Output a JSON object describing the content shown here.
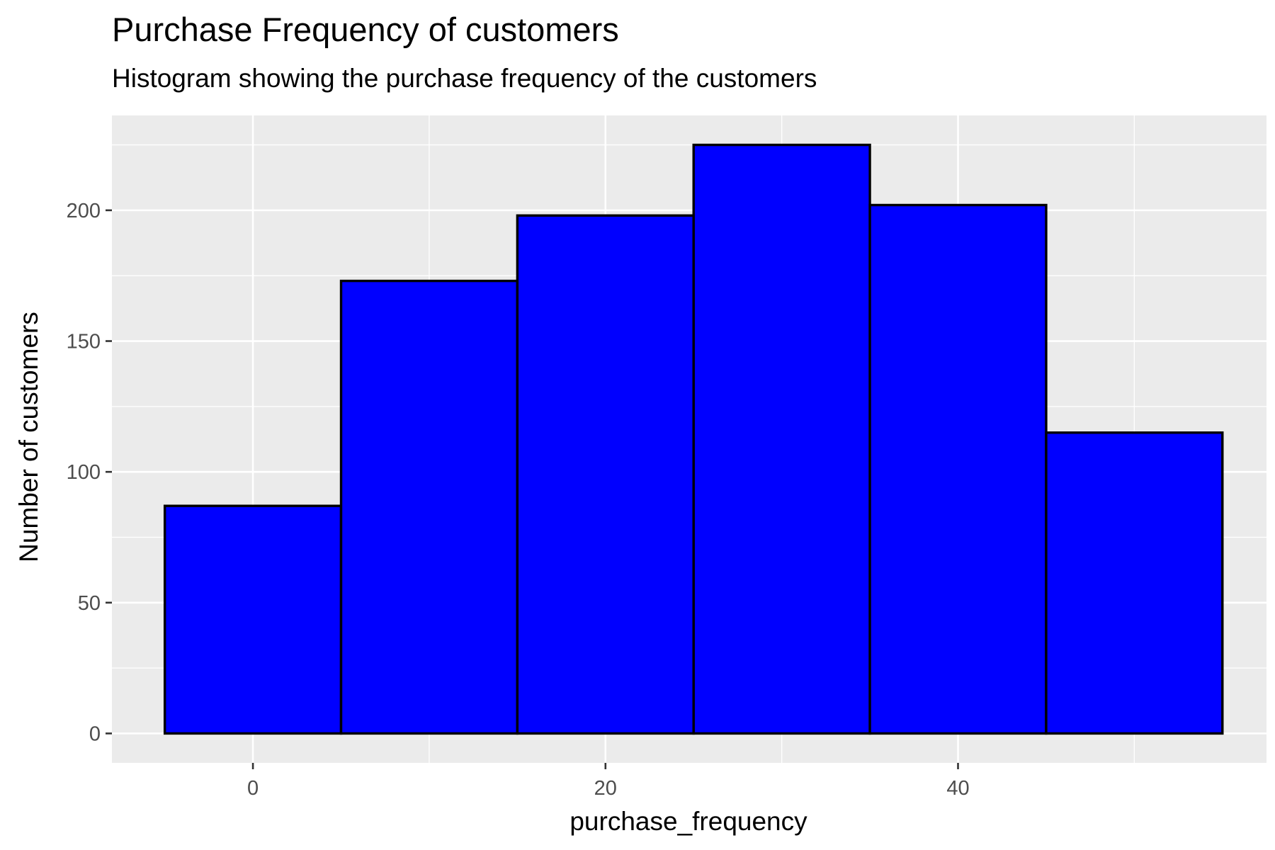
{
  "chart_data": {
    "type": "bar",
    "variant": "histogram",
    "title": "Purchase Frequency of customers",
    "subtitle": "Histogram showing the purchase frequency of the customers",
    "xlabel": "purchase_frequency",
    "ylabel": "Number of customers",
    "bins": [
      {
        "x_start": -5,
        "x_end": 5,
        "count": 87
      },
      {
        "x_start": 5,
        "x_end": 15,
        "count": 173
      },
      {
        "x_start": 15,
        "x_end": 25,
        "count": 198
      },
      {
        "x_start": 25,
        "x_end": 35,
        "count": 225
      },
      {
        "x_start": 35,
        "x_end": 45,
        "count": 202
      },
      {
        "x_start": 45,
        "x_end": 55,
        "count": 115
      }
    ],
    "xlim": [
      -8,
      57.5
    ],
    "ylim": [
      -11.25,
      236.25
    ],
    "x_ticks": [
      0,
      20,
      40
    ],
    "x_tick_labels": [
      "0",
      "20",
      "40"
    ],
    "x_minor_ticks": [
      10,
      30,
      50
    ],
    "y_ticks": [
      0,
      50,
      100,
      150,
      200
    ],
    "y_tick_labels": [
      "0",
      "50",
      "100",
      "150",
      "200"
    ],
    "y_minor_ticks": [
      25,
      75,
      125,
      175,
      225
    ],
    "grid": true,
    "legend": "none",
    "colors": {
      "bar_fill": "#0000ff",
      "bar_outline": "#000000",
      "panel_background": "#ebebeb",
      "grid_line": "#ffffff",
      "tick_label": "#4d4d4d",
      "text": "#000000"
    }
  }
}
